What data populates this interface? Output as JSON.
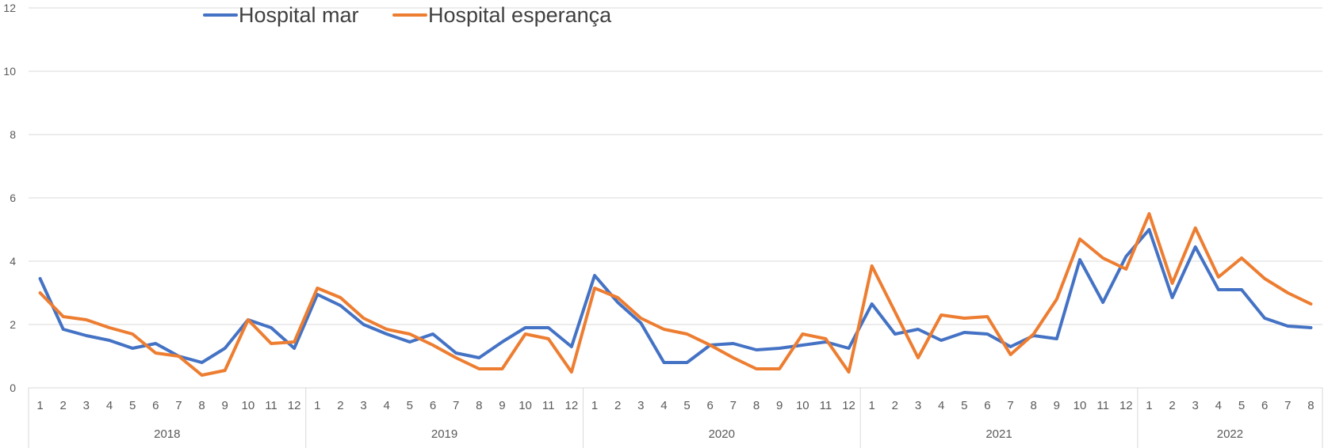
{
  "chart_data": {
    "type": "line",
    "title": "",
    "xlabel": "",
    "ylabel": "",
    "ylim": [
      0,
      12
    ],
    "yticks": [
      0,
      2,
      4,
      6,
      8,
      10,
      12
    ],
    "grid": true,
    "legend": "top-left",
    "groups": [
      {
        "label": "2018",
        "months": [
          "1",
          "2",
          "3",
          "4",
          "5",
          "6",
          "7",
          "8",
          "9",
          "10",
          "11",
          "12"
        ]
      },
      {
        "label": "2019",
        "months": [
          "1",
          "2",
          "3",
          "4",
          "5",
          "6",
          "7",
          "8",
          "9",
          "10",
          "11",
          "12"
        ]
      },
      {
        "label": "2020",
        "months": [
          "1",
          "2",
          "3",
          "4",
          "5",
          "6",
          "7",
          "8",
          "9",
          "10",
          "11",
          "12"
        ]
      },
      {
        "label": "2021",
        "months": [
          "1",
          "2",
          "3",
          "4",
          "5",
          "6",
          "7",
          "8",
          "9",
          "10",
          "11",
          "12"
        ]
      },
      {
        "label": "2022",
        "months": [
          "1",
          "2",
          "3",
          "4",
          "5",
          "6",
          "7",
          "8"
        ]
      }
    ],
    "series": [
      {
        "name": "Hospital mar",
        "color": "#4472c4",
        "values": [
          3.45,
          1.85,
          1.65,
          1.5,
          1.25,
          1.4,
          1.0,
          0.8,
          1.25,
          2.15,
          1.9,
          1.25,
          2.95,
          2.6,
          2.0,
          1.7,
          1.45,
          1.7,
          1.1,
          0.95,
          1.45,
          1.9,
          1.9,
          1.3,
          3.55,
          2.7,
          2.05,
          0.8,
          0.8,
          1.35,
          1.4,
          1.2,
          1.25,
          1.35,
          1.45,
          1.25,
          2.65,
          1.7,
          1.85,
          1.5,
          1.75,
          1.7,
          1.3,
          1.65,
          1.55,
          4.05,
          2.7,
          4.15,
          5.0,
          2.85,
          4.45,
          3.1,
          3.1,
          2.2,
          1.95,
          1.9
        ]
      },
      {
        "name": "Hospital esperança",
        "color": "#ed7d31",
        "values": [
          3.0,
          2.25,
          2.15,
          1.9,
          1.7,
          1.1,
          1.0,
          0.4,
          0.55,
          2.15,
          1.4,
          1.45,
          3.15,
          2.85,
          2.2,
          1.85,
          1.7,
          1.35,
          0.95,
          0.6,
          0.6,
          1.7,
          1.55,
          0.5,
          3.15,
          2.85,
          2.2,
          1.85,
          1.7,
          1.35,
          0.95,
          0.6,
          0.6,
          1.7,
          1.55,
          0.5,
          3.85,
          2.4,
          0.95,
          2.3,
          2.2,
          2.25,
          1.05,
          1.7,
          2.8,
          4.7,
          4.1,
          3.75,
          5.5,
          3.3,
          5.05,
          3.5,
          4.1,
          3.45,
          3.0,
          2.65
        ]
      }
    ]
  }
}
